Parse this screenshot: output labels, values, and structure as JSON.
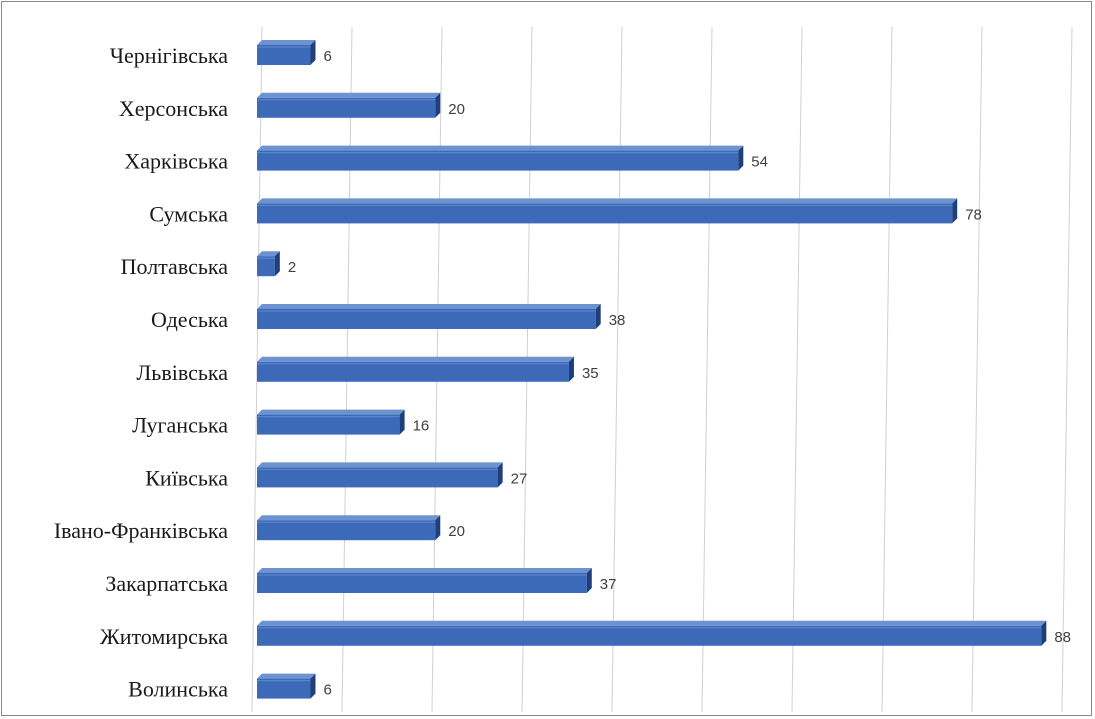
{
  "chart_data": {
    "type": "bar",
    "orientation": "horizontal",
    "style": "3d-bars",
    "bar_color": "#3c6ab8",
    "bar_top_color": "#6d92d0",
    "bar_side_color": "#1f3f7a",
    "grid_color": "#d0d0d0",
    "grid": true,
    "xlim": [
      0,
      92
    ],
    "categories": [
      "Чернігівська",
      "Херсонська",
      "Харківська",
      "Сумська",
      "Полтавська",
      "Одеська",
      "Львівська",
      "Луганська",
      "Київська",
      "Івано-Франківська",
      "Закарпатська",
      "Житомирська",
      "Волинська"
    ],
    "values": [
      6,
      20,
      54,
      78,
      2,
      38,
      35,
      16,
      27,
      20,
      37,
      88,
      6
    ],
    "value_labels": [
      "6",
      "20",
      "54",
      "78",
      "2",
      "38",
      "35",
      "16",
      "27",
      "20",
      "37",
      "88",
      "6"
    ]
  }
}
